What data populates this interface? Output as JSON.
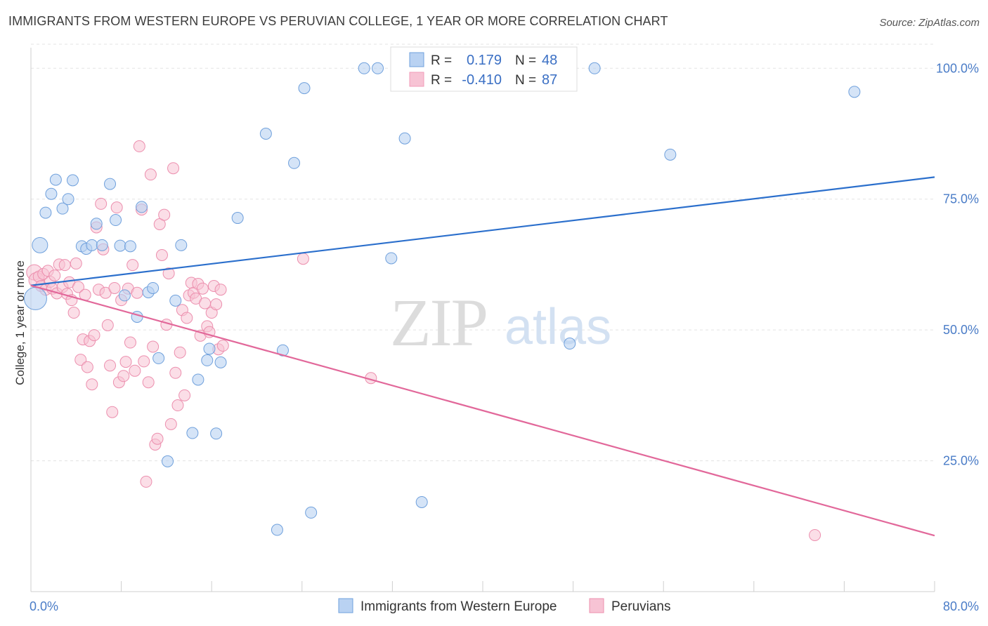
{
  "header": {
    "title": "IMMIGRANTS FROM WESTERN EUROPE VS PERUVIAN COLLEGE, 1 YEAR OR MORE CORRELATION CHART",
    "source": "Source: ZipAtlas.com"
  },
  "watermark": {
    "zip": "ZIP",
    "atlas": "atlas"
  },
  "stats": {
    "r_label": "R =",
    "n_label": "N =",
    "rows": [
      {
        "r": "0.179",
        "n": "48",
        "color": "#6fa0dc"
      },
      {
        "r": "-0.410",
        "n": "87",
        "color": "#f19bb8"
      }
    ]
  },
  "colors": {
    "blue_fill": "#b9d2f2",
    "blue_stroke": "#6fa0dc",
    "blue_line": "#2b6fcc",
    "pink_fill": "#f7c3d4",
    "pink_stroke": "#ec8fae",
    "pink_line": "#e2689a",
    "tick_text": "#4a7cc7",
    "grid": "#e3e3e3"
  },
  "chart_data": {
    "type": "scatter",
    "title": "IMMIGRANTS FROM WESTERN EUROPE VS PERUVIAN COLLEGE, 1 YEAR OR MORE CORRELATION CHART",
    "xlabel": "",
    "ylabel": "College, 1 year or more",
    "xlim": [
      0,
      80
    ],
    "ylim": [
      0,
      105
    ],
    "x_tick_labels": [
      "0.0%",
      "80.0%"
    ],
    "y_tick_values": [
      25,
      50,
      75,
      100
    ],
    "y_tick_labels": [
      "25.0%",
      "50.0%",
      "75.0%",
      "100.0%"
    ],
    "grid": true,
    "legend": {
      "position": "bottom-center"
    },
    "series": [
      {
        "name": "Immigrants from Western Europe",
        "color": "#6fa0dc",
        "trend": {
          "x": [
            0,
            80
          ],
          "y": [
            58.5,
            79.2
          ]
        },
        "points": [
          [
            0.4,
            56.0
          ],
          [
            0.8,
            66.2
          ],
          [
            1.3,
            72.4
          ],
          [
            1.8,
            76.0
          ],
          [
            2.2,
            78.7
          ],
          [
            2.8,
            73.2
          ],
          [
            3.3,
            75.0
          ],
          [
            3.7,
            78.6
          ],
          [
            4.5,
            66.0
          ],
          [
            4.9,
            65.5
          ],
          [
            5.4,
            66.2
          ],
          [
            5.8,
            70.3
          ],
          [
            6.3,
            66.2
          ],
          [
            7.0,
            77.9
          ],
          [
            7.5,
            71.0
          ],
          [
            7.9,
            66.1
          ],
          [
            8.3,
            56.6
          ],
          [
            8.8,
            66.0
          ],
          [
            9.4,
            52.5
          ],
          [
            9.8,
            73.5
          ],
          [
            10.4,
            57.2
          ],
          [
            10.8,
            58.0
          ],
          [
            11.3,
            44.6
          ],
          [
            12.1,
            24.9
          ],
          [
            12.8,
            55.6
          ],
          [
            13.3,
            66.2
          ],
          [
            14.3,
            30.3
          ],
          [
            14.8,
            40.5
          ],
          [
            15.6,
            44.2
          ],
          [
            15.8,
            46.4
          ],
          [
            16.4,
            30.2
          ],
          [
            16.8,
            43.8
          ],
          [
            18.3,
            71.4
          ],
          [
            20.8,
            87.5
          ],
          [
            21.8,
            11.8
          ],
          [
            22.3,
            46.1
          ],
          [
            23.3,
            81.9
          ],
          [
            24.2,
            96.2
          ],
          [
            24.8,
            15.1
          ],
          [
            29.5,
            100.0
          ],
          [
            30.7,
            100.0
          ],
          [
            31.9,
            63.7
          ],
          [
            33.1,
            86.6
          ],
          [
            34.6,
            17.1
          ],
          [
            47.7,
            47.4
          ],
          [
            49.9,
            100.0
          ],
          [
            56.6,
            83.5
          ],
          [
            72.9,
            95.5
          ]
        ]
      },
      {
        "name": "Peruvians",
        "color": "#ec8fae",
        "trend": {
          "x": [
            0,
            80
          ],
          "y": [
            58.5,
            10.7
          ]
        },
        "points": [
          [
            0.3,
            61.0
          ],
          [
            0.5,
            59.5
          ],
          [
            0.7,
            60.2
          ],
          [
            0.9,
            58.4
          ],
          [
            1.1,
            60.7
          ],
          [
            1.3,
            57.7
          ],
          [
            1.5,
            61.3
          ],
          [
            1.7,
            59.2
          ],
          [
            1.9,
            57.9
          ],
          [
            2.1,
            60.4
          ],
          [
            2.3,
            57.0
          ],
          [
            2.5,
            62.5
          ],
          [
            2.8,
            58.2
          ],
          [
            3.0,
            62.4
          ],
          [
            3.2,
            56.9
          ],
          [
            3.4,
            59.1
          ],
          [
            3.6,
            55.7
          ],
          [
            3.8,
            53.3
          ],
          [
            4.0,
            62.7
          ],
          [
            4.2,
            58.2
          ],
          [
            4.4,
            44.3
          ],
          [
            4.6,
            48.2
          ],
          [
            4.8,
            56.7
          ],
          [
            5.0,
            42.9
          ],
          [
            5.2,
            47.9
          ],
          [
            5.4,
            39.6
          ],
          [
            5.6,
            49.0
          ],
          [
            5.8,
            69.6
          ],
          [
            6.0,
            57.7
          ],
          [
            6.2,
            74.1
          ],
          [
            6.4,
            65.4
          ],
          [
            6.6,
            57.1
          ],
          [
            6.8,
            50.9
          ],
          [
            7.0,
            43.2
          ],
          [
            7.2,
            34.3
          ],
          [
            7.4,
            58.0
          ],
          [
            7.6,
            73.4
          ],
          [
            7.8,
            40.0
          ],
          [
            8.0,
            55.7
          ],
          [
            8.2,
            41.2
          ],
          [
            8.4,
            43.9
          ],
          [
            8.6,
            57.9
          ],
          [
            8.8,
            47.6
          ],
          [
            9.0,
            62.4
          ],
          [
            9.2,
            42.2
          ],
          [
            9.4,
            57.1
          ],
          [
            9.6,
            85.1
          ],
          [
            9.8,
            73.0
          ],
          [
            10.0,
            44.0
          ],
          [
            10.2,
            21.0
          ],
          [
            10.4,
            40.0
          ],
          [
            10.6,
            79.7
          ],
          [
            10.8,
            46.8
          ],
          [
            11.0,
            28.1
          ],
          [
            11.2,
            29.2
          ],
          [
            11.4,
            70.2
          ],
          [
            11.6,
            64.3
          ],
          [
            11.8,
            72.0
          ],
          [
            12.0,
            51.0
          ],
          [
            12.2,
            60.8
          ],
          [
            12.4,
            32.0
          ],
          [
            12.6,
            80.9
          ],
          [
            12.8,
            41.8
          ],
          [
            13.0,
            35.6
          ],
          [
            13.2,
            45.7
          ],
          [
            13.4,
            53.8
          ],
          [
            13.6,
            37.5
          ],
          [
            13.8,
            52.3
          ],
          [
            14.0,
            56.6
          ],
          [
            14.2,
            59.0
          ],
          [
            14.4,
            57.1
          ],
          [
            14.6,
            56.0
          ],
          [
            14.8,
            58.8
          ],
          [
            15.0,
            48.9
          ],
          [
            15.2,
            57.9
          ],
          [
            15.4,
            55.1
          ],
          [
            15.6,
            50.7
          ],
          [
            15.8,
            49.6
          ],
          [
            16.0,
            53.3
          ],
          [
            16.2,
            58.4
          ],
          [
            16.4,
            54.9
          ],
          [
            16.6,
            46.3
          ],
          [
            16.8,
            57.7
          ],
          [
            17.0,
            47.0
          ],
          [
            24.1,
            63.6
          ],
          [
            30.1,
            40.8
          ],
          [
            69.4,
            10.8
          ]
        ]
      }
    ]
  },
  "legend": {
    "items": [
      {
        "label": "Immigrants from Western Europe"
      },
      {
        "label": "Peruvians"
      }
    ]
  }
}
